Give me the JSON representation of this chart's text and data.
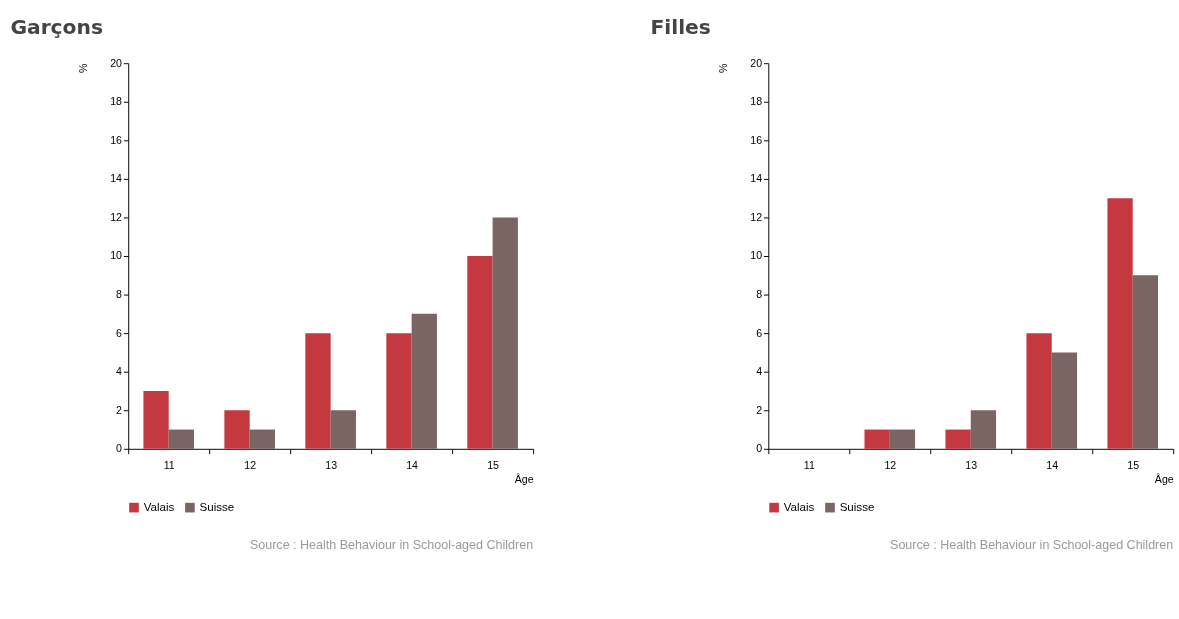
{
  "chart_data": [
    {
      "type": "bar",
      "title": "Garçons",
      "ylabel": "%",
      "xlabel": "Âge",
      "categories": [
        "11",
        "12",
        "13",
        "14",
        "15"
      ],
      "series": [
        {
          "name": "Valais",
          "color": "#c4393f",
          "values": [
            3,
            2,
            6,
            6,
            10
          ]
        },
        {
          "name": "Suisse",
          "color": "#7b6563",
          "values": [
            1,
            1,
            2,
            7,
            12
          ]
        }
      ],
      "ylim": [
        0,
        20
      ],
      "yticks": [
        0,
        2,
        4,
        6,
        8,
        10,
        12,
        14,
        16,
        18,
        20
      ],
      "grid": false,
      "legend": "bottom",
      "annotations": [
        "Source : Health Behaviour in School-aged Children"
      ]
    },
    {
      "type": "bar",
      "title": "Filles",
      "ylabel": "%",
      "xlabel": "Âge",
      "categories": [
        "11",
        "12",
        "13",
        "14",
        "15"
      ],
      "series": [
        {
          "name": "Valais",
          "color": "#c4393f",
          "values": [
            0,
            1,
            1,
            6,
            13
          ]
        },
        {
          "name": "Suisse",
          "color": "#7b6563",
          "values": [
            0,
            1,
            2,
            5,
            9
          ]
        }
      ],
      "ylim": [
        0,
        20
      ],
      "yticks": [
        0,
        2,
        4,
        6,
        8,
        10,
        12,
        14,
        16,
        18,
        20
      ],
      "grid": false,
      "legend": "bottom",
      "annotations": [
        "Source : Health Behaviour in School-aged Children"
      ]
    }
  ]
}
